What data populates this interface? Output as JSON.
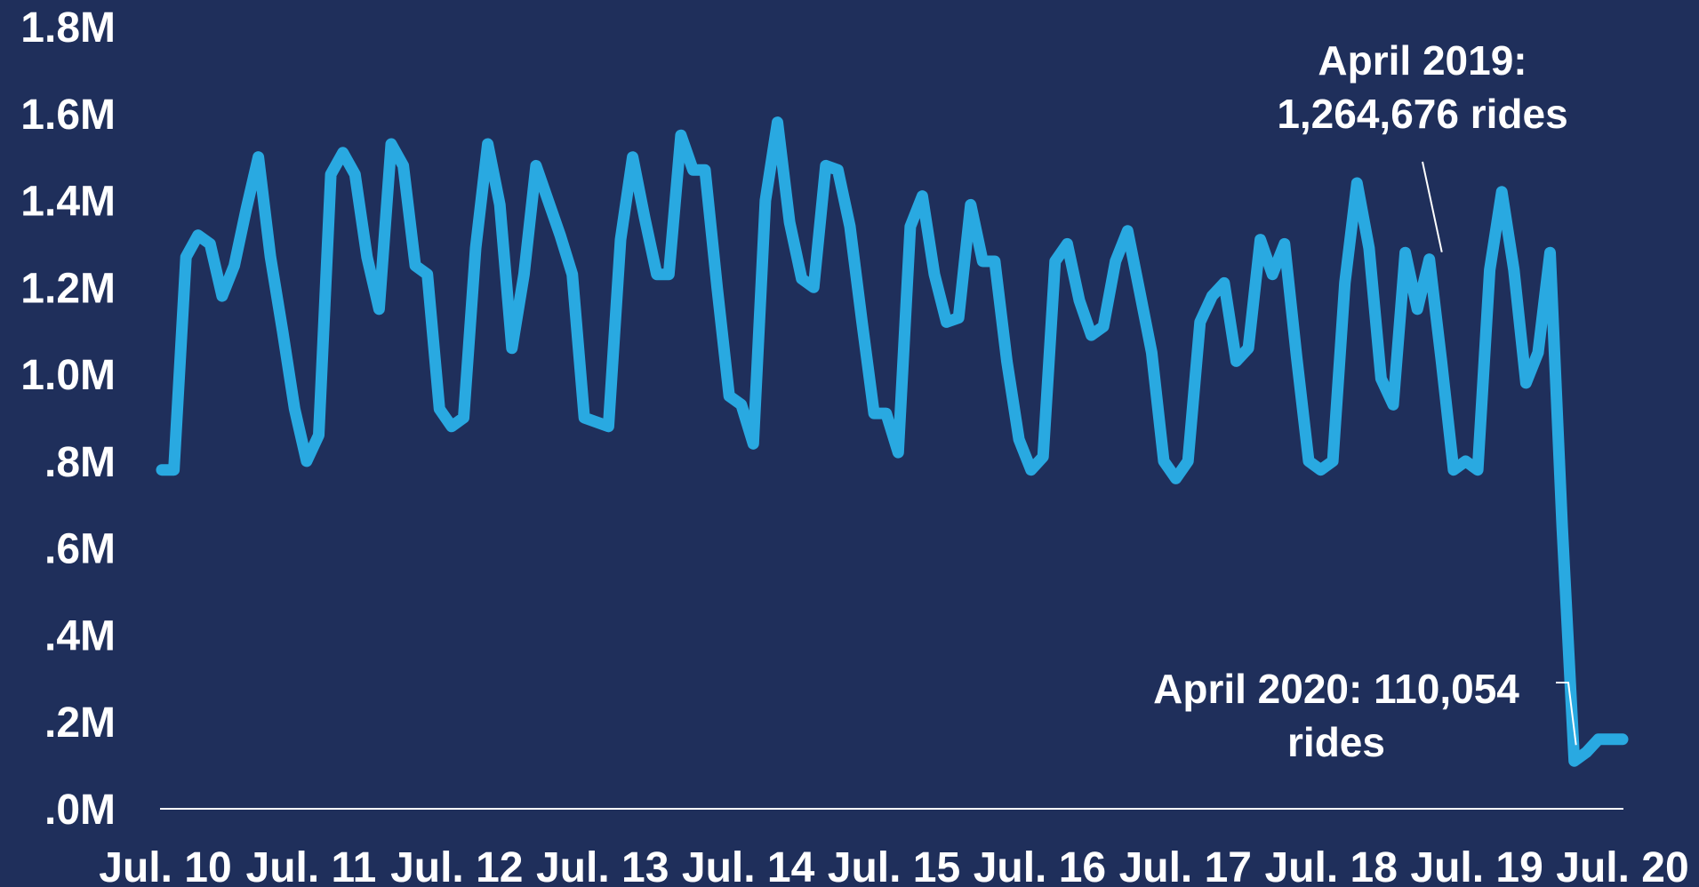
{
  "chart_data": {
    "type": "line",
    "title": "",
    "xlabel": "",
    "ylabel": "",
    "ylim": [
      0,
      1.8
    ],
    "yticks": [
      {
        "value": 0.0,
        "label": ".0M"
      },
      {
        "value": 0.2,
        "label": ".2M"
      },
      {
        "value": 0.4,
        "label": ".4M"
      },
      {
        "value": 0.6,
        "label": ".6M"
      },
      {
        "value": 0.8,
        "label": ".8M"
      },
      {
        "value": 1.0,
        "label": "1.0M"
      },
      {
        "value": 1.2,
        "label": "1.2M"
      },
      {
        "value": 1.4,
        "label": "1.4M"
      },
      {
        "value": 1.6,
        "label": "1.6M"
      },
      {
        "value": 1.8,
        "label": "1.8M"
      }
    ],
    "xticks": [
      "Jul. 10",
      "Jul. 11",
      "Jul. 12",
      "Jul. 13",
      "Jul. 14",
      "Jul. 15",
      "Jul. 16",
      "Jul. 17",
      "Jul. 18",
      "Jul. 19",
      "Jul. 20"
    ],
    "x_start": "2010-07",
    "x_end": "2020-07",
    "colors": {
      "line": "#29a9e1",
      "background": "#1f2f5b",
      "baseline": "#ffffff",
      "text": "#ffffff"
    },
    "series": [
      {
        "values": [
          0.78,
          0.78,
          1.27,
          1.32,
          1.3,
          1.18,
          1.25,
          1.38,
          1.5,
          1.27,
          1.1,
          0.92,
          0.8,
          0.86,
          1.46,
          1.51,
          1.46,
          1.27,
          1.15,
          1.53,
          1.48,
          1.25,
          1.23,
          0.92,
          0.88,
          0.9,
          1.29,
          1.53,
          1.39,
          1.06,
          1.23,
          1.48,
          1.4,
          1.32,
          1.23,
          0.9,
          0.89,
          0.88,
          1.31,
          1.5,
          1.36,
          1.23,
          1.23,
          1.55,
          1.47,
          1.47,
          1.2,
          0.95,
          0.93,
          0.84,
          1.4,
          1.58,
          1.35,
          1.22,
          1.2,
          1.48,
          1.47,
          1.34,
          1.12,
          0.91,
          0.91,
          0.82,
          1.34,
          1.41,
          1.23,
          1.12,
          1.13,
          1.39,
          1.26,
          1.26,
          1.03,
          0.85,
          0.78,
          0.81,
          1.26,
          1.3,
          1.17,
          1.09,
          1.11,
          1.26,
          1.33,
          1.19,
          1.05,
          0.8,
          0.76,
          0.8,
          1.12,
          1.18,
          1.21,
          1.03,
          1.06,
          1.31,
          1.23,
          1.3,
          1.04,
          0.8,
          0.78,
          0.8,
          1.21,
          1.44,
          1.29,
          0.99,
          0.93,
          1.28,
          1.15,
          1.264676,
          1.03,
          0.78,
          0.8,
          0.78,
          1.24,
          1.42,
          1.24,
          0.98,
          1.05,
          1.28,
          0.65,
          0.110054,
          0.13,
          0.16,
          0.16,
          0.16
        ]
      }
    ],
    "annotations": [
      {
        "lines": [
          "April 2019:",
          "1,264,676 rides"
        ],
        "point_index": 105,
        "value": 1264676
      },
      {
        "lines": [
          "April 2020: 110,054",
          "rides"
        ],
        "point_index": 117,
        "value": 110054
      }
    ]
  }
}
